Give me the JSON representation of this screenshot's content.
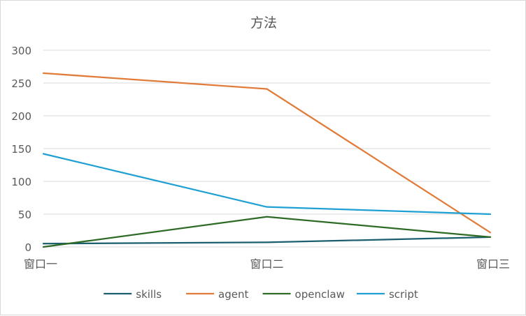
{
  "chart_data": {
    "type": "line",
    "title": "方法",
    "xlabel": "",
    "ylabel": "",
    "categories": [
      "窗口一",
      "窗口二",
      "窗口三"
    ],
    "ylim": [
      0,
      300
    ],
    "yticks": [
      0,
      50,
      100,
      150,
      200,
      250,
      300
    ],
    "grid": true,
    "legend_position": "bottom",
    "series": [
      {
        "name": "skills",
        "color": "#1b5e6e",
        "values": [
          5,
          7,
          15
        ]
      },
      {
        "name": "agent",
        "color": "#e07b39",
        "values": [
          265,
          241,
          22
        ]
      },
      {
        "name": "openclaw",
        "color": "#2e6b26",
        "values": [
          0,
          46,
          15
        ]
      },
      {
        "name": "script",
        "color": "#1ea0d2",
        "values": [
          142,
          61,
          50
        ]
      }
    ]
  }
}
